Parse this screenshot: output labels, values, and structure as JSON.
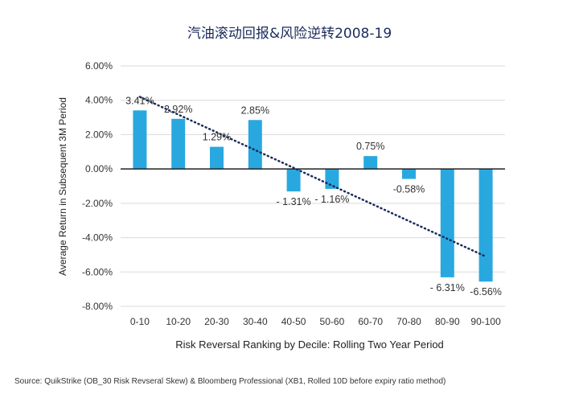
{
  "chart_data": {
    "type": "bar",
    "title": "汽油滚动回报&风险逆转2008-19",
    "xlabel": "Risk Reversal Ranking by Decile: Rolling Two Year Period",
    "ylabel": "Average Return in Subsequent 3M Period",
    "categories": [
      "0-10",
      "10-20",
      "20-30",
      "30-40",
      "40-50",
      "50-60",
      "60-70",
      "70-80",
      "80-90",
      "90-100"
    ],
    "values": [
      3.41,
      2.92,
      1.29,
      2.85,
      -1.31,
      -1.16,
      0.75,
      -0.58,
      -6.31,
      -6.56
    ],
    "value_labels": [
      "3.41%",
      "2.92%",
      "1.29%",
      "2.85%",
      "- 1.31%",
      "- 1.16%",
      "0.75%",
      "-0.58%",
      "- 6.31%",
      "-6.56%"
    ],
    "ylim": [
      -8,
      6
    ],
    "yticks": [
      6,
      4,
      2,
      0,
      -2,
      -4,
      -6,
      -8
    ],
    "ytick_labels": [
      "6.00%",
      "4.00%",
      "2.00%",
      "0.00%",
      "-2.00%",
      "-4.00%",
      "-6.00%",
      "-8.00%"
    ],
    "trendline": {
      "style": "dotted",
      "start": [
        0,
        4.2
      ],
      "end": [
        9,
        -5.1
      ]
    },
    "bar_color": "#29a8e0",
    "trendline_color": "#1a2b5c",
    "grid": true,
    "legend": "none",
    "source": "Source: QuikStrike (OB_30 Risk Revseral Skew) & Bloomberg Professional (XB1, Rolled 10D before expiry ratio method)"
  }
}
